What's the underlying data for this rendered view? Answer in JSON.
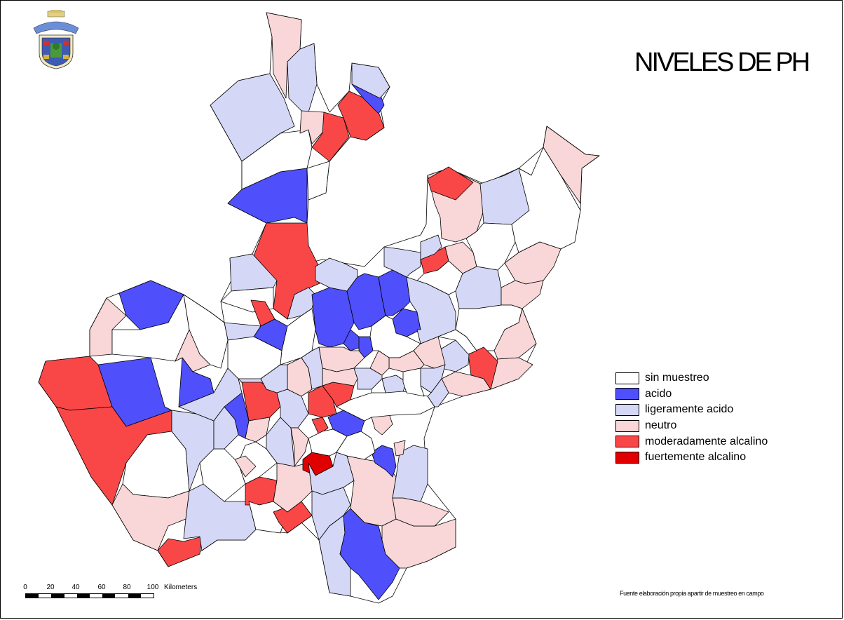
{
  "title": "NIVELES DE PH",
  "legend": {
    "items": [
      {
        "label": "sin muestreo",
        "color": "#ffffff"
      },
      {
        "label": "acido",
        "color": "#4f4ffc"
      },
      {
        "label": "ligeramente acido",
        "color": "#d5d7f6"
      },
      {
        "label": "neutro",
        "color": "#f9d6d7"
      },
      {
        "label": "moderadamente alcalino",
        "color": "#f94748"
      },
      {
        "label": "fuertemente alcalino",
        "color": "#e00000"
      }
    ]
  },
  "scale": {
    "ticks": [
      "0",
      "20",
      "40",
      "60",
      "80",
      "100"
    ],
    "unit": "Kilometers"
  },
  "source": "Fuente elaboración propia apartir de muestreo en campo",
  "logo_icon": "coat-of-arms-icon"
}
